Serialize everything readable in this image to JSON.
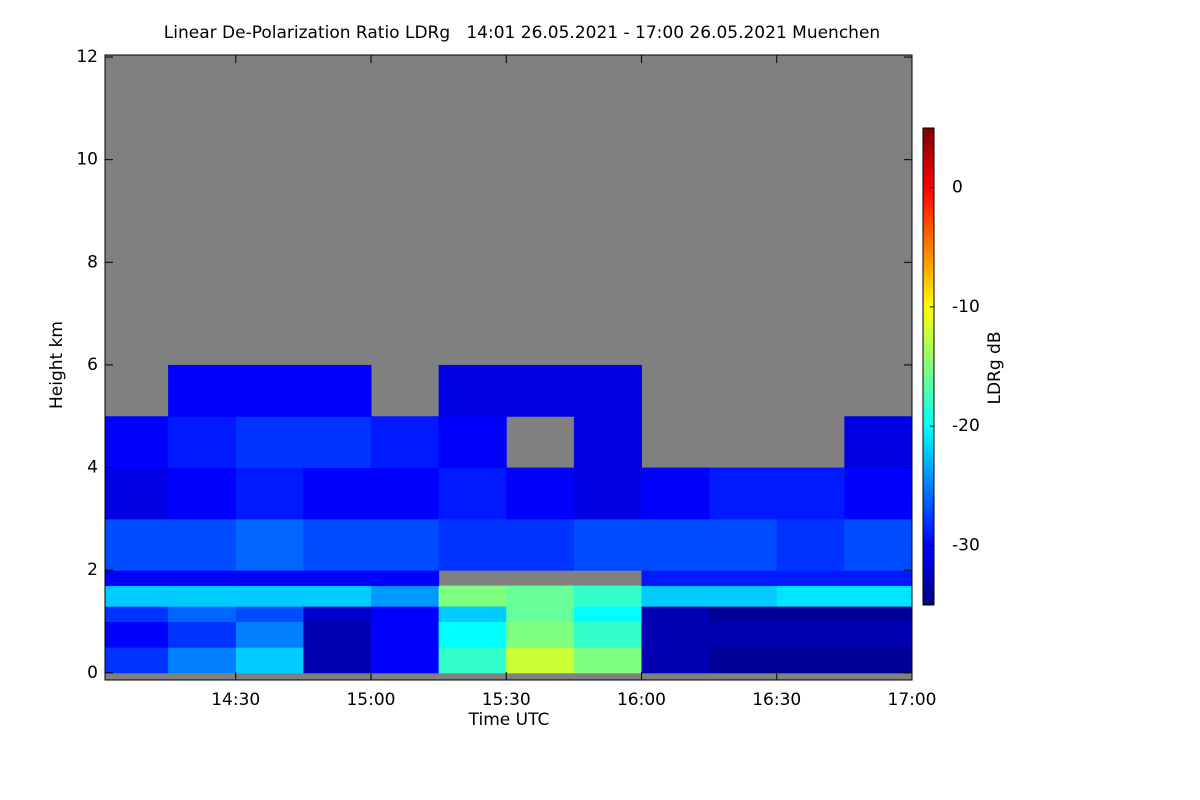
{
  "chart_data": {
    "type": "heatmap",
    "title": "Linear De-Polarization Ratio LDRg   14:01 26.05.2021 - 17:00 26.05.2021 Muenchen",
    "x_label": "Time UTC",
    "y_label": "Height km",
    "colorbar_label": "LDRg dB",
    "xlim": [
      841,
      1020
    ],
    "xticks": [
      {
        "value": 870,
        "label": "14:30"
      },
      {
        "value": 900,
        "label": "15:00"
      },
      {
        "value": 930,
        "label": "15:30"
      },
      {
        "value": 960,
        "label": "16:00"
      },
      {
        "value": 990,
        "label": "16:30"
      },
      {
        "value": 1020,
        "label": "17:00"
      }
    ],
    "ylim": [
      -0.14,
      12.04
    ],
    "yticks": [
      0,
      2,
      4,
      6,
      8,
      10,
      12
    ],
    "zlim": [
      -35,
      5
    ],
    "zticks": [
      0,
      -10,
      -20,
      -30
    ],
    "colormap": [
      "#00007f",
      "#0000ff",
      "#007fff",
      "#00ffff",
      "#7fff7f",
      "#ffff00",
      "#ff7f00",
      "#ff0000",
      "#7f0000"
    ],
    "null_color": "#808080",
    "xbins": [
      841,
      855,
      870,
      885,
      900,
      915,
      930,
      945,
      960,
      975,
      990,
      1005,
      1020
    ],
    "ybins": [
      0,
      0.5,
      1,
      1.3,
      1.7,
      2,
      3,
      4,
      5,
      6,
      12
    ],
    "z": [
      [
        -28,
        -25,
        -22,
        -33,
        -30,
        -18,
        -12,
        -15,
        -33,
        -34,
        -34,
        -34
      ],
      [
        -30,
        -28,
        -25,
        -33,
        -30,
        -20,
        -15,
        -18,
        -33,
        -33,
        -33,
        -33
      ],
      [
        -28,
        -26,
        -27,
        -32,
        -30,
        -22,
        -16,
        -20,
        -33,
        -34,
        -34,
        -34
      ],
      [
        -22,
        -22,
        -22,
        -22,
        -24,
        -15,
        -16,
        -18,
        -22,
        -22,
        -21,
        -21
      ],
      [
        -30,
        -30,
        -30,
        -30,
        -30,
        null,
        null,
        null,
        -29,
        -29,
        -29,
        -29
      ],
      [
        -27,
        -27,
        -26,
        -27,
        -27,
        -28,
        -28,
        -27,
        -27,
        -27,
        -28,
        -27
      ],
      [
        -31,
        -30,
        -29,
        -30,
        -30,
        -29,
        -30,
        -31,
        -30,
        -29,
        -29,
        -30
      ],
      [
        -30,
        -29,
        -28,
        -28,
        -29,
        -30,
        null,
        -31,
        null,
        null,
        null,
        -31
      ],
      [
        null,
        -30,
        -30,
        -30,
        null,
        -31,
        -31,
        -31,
        null,
        null,
        null,
        null
      ],
      [
        null,
        null,
        null,
        null,
        null,
        null,
        null,
        null,
        null,
        null,
        null,
        null
      ]
    ]
  }
}
